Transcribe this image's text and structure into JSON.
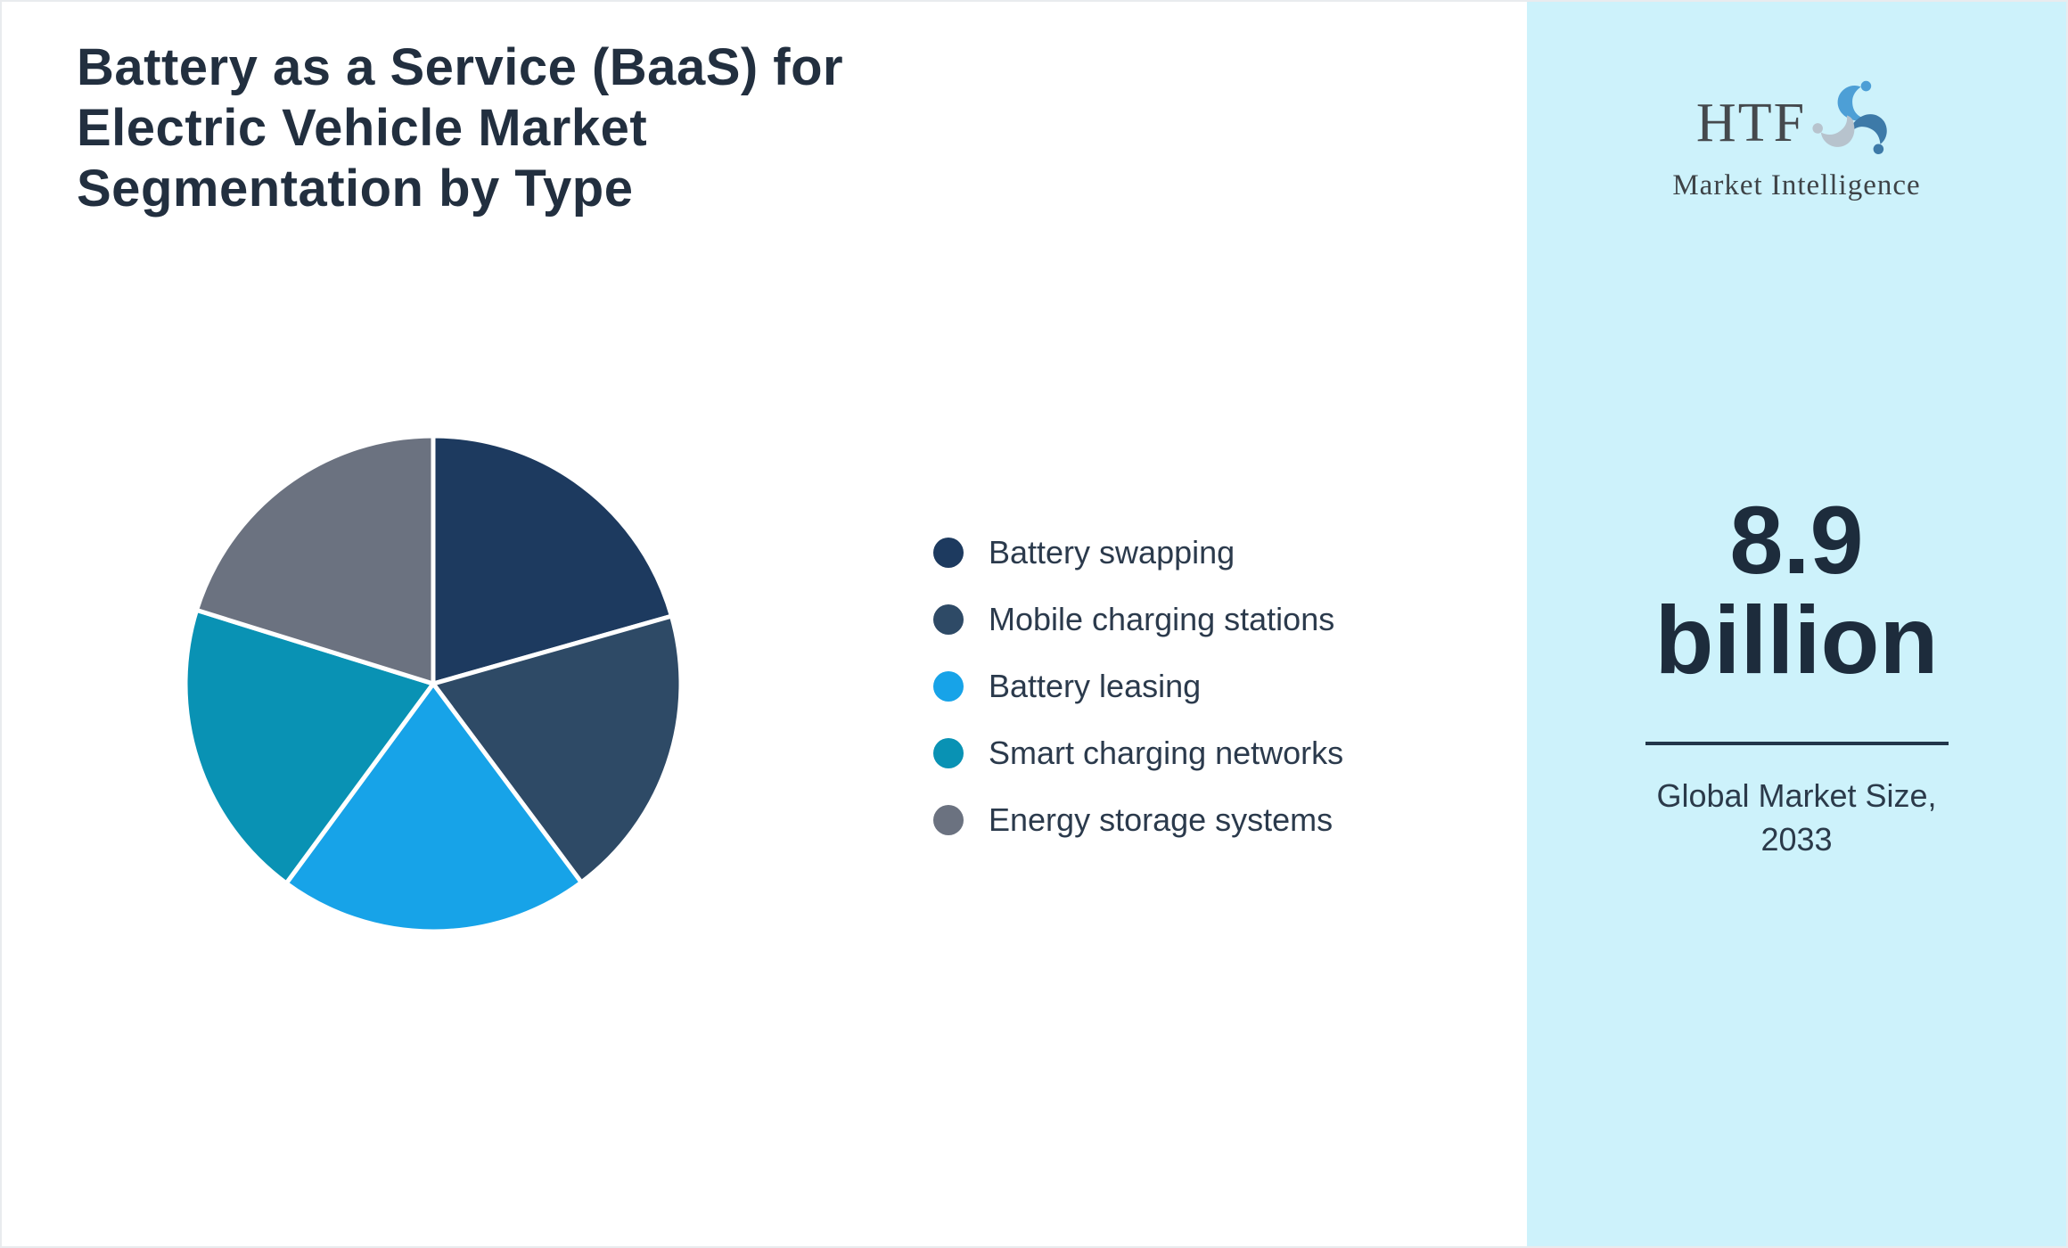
{
  "page": {
    "title": "Battery as a Service (BaaS) for Electric Vehicle Market Segmentation by Type"
  },
  "chart_data": {
    "type": "pie",
    "title": "Battery as a Service (BaaS) for Electric Vehicle Market Segmentation by Type",
    "labels": [
      "Battery swapping",
      "Mobile charging stations",
      "Battery leasing",
      "Smart charging networks",
      "Energy storage systems"
    ],
    "values": [
      20.6,
      19.2,
      20.3,
      19.7,
      20.2
    ],
    "colors": [
      "#1d3a5f",
      "#2e4a66",
      "#17a3e8",
      "#0992b4",
      "#6b7280"
    ],
    "start_angle_deg": 0,
    "direction": "clockwise",
    "slice_border_color": "#ffffff",
    "legend_position": "right"
  },
  "sidebar": {
    "background": "#cdf2fb",
    "logo": {
      "text": "HTF",
      "subtext": "Market Intelligence"
    },
    "value_line1": "8.9",
    "value_line2": "billion",
    "caption_line1": "Global Market Size,",
    "caption_line2": "2033"
  },
  "colors": {
    "title_text": "#222f3f",
    "legend_text": "#2b3a4c",
    "value_text": "#1d2c3c",
    "divider": "#22364a",
    "page_border": "#e9ebee",
    "logo_swirl": [
      "#4d9fd6",
      "#3d7aa8",
      "#b7c3cd"
    ]
  }
}
